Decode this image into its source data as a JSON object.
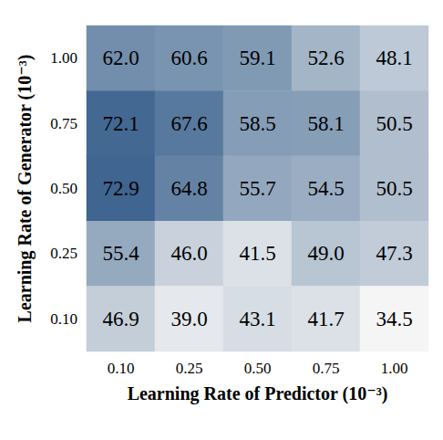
{
  "chart_data": {
    "type": "heatmap",
    "x_label": "Learning Rate of Predictor (10⁻³)",
    "y_label": "Learning Rate of Generator (10⁻³)",
    "x_categories": [
      "0.10",
      "0.25",
      "0.50",
      "0.75",
      "1.00"
    ],
    "y_categories": [
      "1.00",
      "0.75",
      "0.50",
      "0.25",
      "0.10"
    ],
    "cells": [
      [
        62.0,
        60.6,
        59.1,
        52.6,
        48.1
      ],
      [
        72.1,
        67.6,
        58.5,
        58.1,
        50.5
      ],
      [
        72.9,
        64.8,
        55.7,
        54.5,
        50.5
      ],
      [
        55.4,
        46.0,
        41.5,
        49.0,
        47.3
      ],
      [
        46.9,
        39.0,
        43.1,
        41.7,
        34.5
      ]
    ],
    "value_labels": [
      [
        "62.0",
        "60.6",
        "59.1",
        "52.6",
        "48.1"
      ],
      [
        "72.1",
        "67.6",
        "58.5",
        "58.1",
        "50.5"
      ],
      [
        "72.9",
        "64.8",
        "55.7",
        "54.5",
        "50.5"
      ],
      [
        "55.4",
        "46.0",
        "41.5",
        "49.0",
        "47.3"
      ],
      [
        "46.9",
        "39.0",
        "43.1",
        "41.7",
        "34.5"
      ]
    ],
    "data_labels": true
  }
}
